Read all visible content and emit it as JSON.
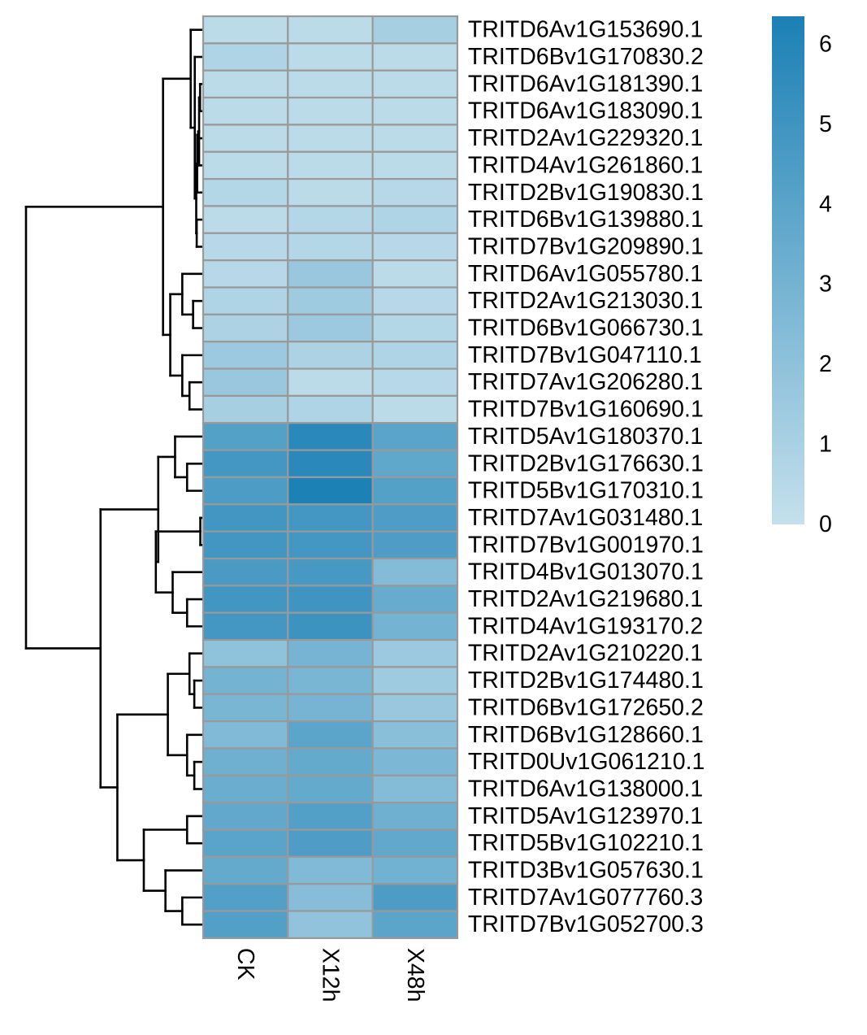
{
  "chart_data": {
    "type": "heatmap",
    "columns": [
      "CK",
      "X12h",
      "X48h"
    ],
    "rows": [
      "TRITD6Av1G153690.1",
      "TRITD6Bv1G170830.2",
      "TRITD6Av1G181390.1",
      "TRITD6Av1G183090.1",
      "TRITD2Av1G229320.1",
      "TRITD4Av1G261860.1",
      "TRITD2Bv1G190830.1",
      "TRITD6Bv1G139880.1",
      "TRITD7Bv1G209890.1",
      "TRITD6Av1G055780.1",
      "TRITD2Av1G213030.1",
      "TRITD6Bv1G066730.1",
      "TRITD7Bv1G047110.1",
      "TRITD7Av1G206280.1",
      "TRITD7Bv1G160690.1",
      "TRITD5Av1G180370.1",
      "TRITD2Bv1G176630.1",
      "TRITD5Bv1G170310.1",
      "TRITD7Av1G031480.1",
      "TRITD7Bv1G001970.1",
      "TRITD4Bv1G013070.1",
      "TRITD2Av1G219680.1",
      "TRITD4Av1G193170.2",
      "TRITD2Av1G210220.1",
      "TRITD2Bv1G174480.1",
      "TRITD6Bv1G172650.2",
      "TRITD6Bv1G128660.1",
      "TRITD0Uv1G061210.1",
      "TRITD6Av1G138000.1",
      "TRITD5Av1G123970.1",
      "TRITD5Bv1G102210.1",
      "TRITD3Bv1G057630.1",
      "TRITD7Av1G077760.3",
      "TRITD7Bv1G052700.3"
    ],
    "values": [
      [
        0.3,
        0.3,
        1.1
      ],
      [
        0.8,
        0.3,
        0.3
      ],
      [
        0.3,
        0.3,
        0.3
      ],
      [
        0.3,
        0.3,
        0.3
      ],
      [
        0.3,
        0.3,
        0.3
      ],
      [
        0.3,
        0.3,
        0.3
      ],
      [
        0.6,
        0.3,
        0.5
      ],
      [
        0.3,
        0.6,
        0.8
      ],
      [
        0.5,
        0.6,
        0.5
      ],
      [
        0.5,
        1.6,
        0.3
      ],
      [
        0.8,
        1.4,
        0.5
      ],
      [
        0.9,
        1.5,
        0.6
      ],
      [
        1.5,
        0.9,
        0.8
      ],
      [
        1.6,
        0.3,
        0.5
      ],
      [
        1.1,
        0.8,
        0.3
      ],
      [
        4.2,
        5.8,
        4.0
      ],
      [
        4.8,
        5.8,
        3.8
      ],
      [
        4.5,
        6.3,
        4.2
      ],
      [
        4.9,
        4.8,
        4.4
      ],
      [
        4.9,
        4.8,
        4.4
      ],
      [
        4.6,
        4.7,
        2.4
      ],
      [
        4.9,
        5.0,
        3.5
      ],
      [
        4.8,
        5.1,
        3.0
      ],
      [
        2.0,
        2.9,
        1.5
      ],
      [
        3.0,
        2.8,
        1.4
      ],
      [
        2.8,
        2.9,
        1.6
      ],
      [
        2.5,
        3.9,
        2.2
      ],
      [
        3.2,
        3.6,
        2.7
      ],
      [
        3.4,
        3.6,
        2.4
      ],
      [
        3.7,
        4.3,
        3.2
      ],
      [
        4.0,
        4.4,
        3.7
      ],
      [
        3.6,
        2.5,
        3.1
      ],
      [
        4.3,
        2.3,
        4.5
      ],
      [
        4.3,
        1.9,
        3.9
      ]
    ],
    "legend": {
      "min": 0,
      "max": 6.35,
      "ticks": [
        0,
        1,
        2,
        3,
        4,
        5,
        6
      ],
      "color_low": "#c4e0ec",
      "color_high": "#1b80b5",
      "placement": "right"
    },
    "row_dendrogram": {
      "merges": [
        [
          -3,
          -4,
          0.06
        ],
        [
          -6,
          1,
          0.1
        ],
        [
          -5,
          2,
          0.14
        ],
        [
          -7,
          3,
          0.18
        ],
        [
          -8,
          -9,
          0.2
        ],
        [
          4,
          5,
          0.22
        ],
        [
          -2,
          6,
          0.28
        ],
        [
          -1,
          7,
          0.45
        ],
        [
          -11,
          -12,
          0.35
        ],
        [
          -10,
          9,
          0.8
        ],
        [
          -14,
          -15,
          0.5
        ],
        [
          -13,
          11,
          0.8
        ],
        [
          10,
          12,
          1.3
        ],
        [
          8,
          13,
          1.6
        ],
        [
          -19,
          -20,
          0.05
        ],
        [
          -17,
          -18,
          0.6
        ],
        [
          -16,
          16,
          1.1
        ],
        [
          -22,
          -23,
          0.6
        ],
        [
          -21,
          18,
          1.2
        ],
        [
          15,
          19,
          1.9
        ],
        [
          17,
          20,
          1.8
        ],
        [
          -25,
          -26,
          0.3
        ],
        [
          -24,
          22,
          0.5
        ],
        [
          -28,
          -29,
          0.3
        ],
        [
          -27,
          24,
          0.6
        ],
        [
          23,
          25,
          1.4
        ],
        [
          -30,
          -31,
          0.6
        ],
        [
          -33,
          -34,
          0.8
        ],
        [
          -32,
          28,
          1.5
        ],
        [
          27,
          29,
          2.4
        ],
        [
          26,
          30,
          3.5
        ],
        [
          21,
          31,
          4.2
        ],
        [
          14,
          32,
          7.3
        ]
      ],
      "max_height": 7.3
    }
  }
}
